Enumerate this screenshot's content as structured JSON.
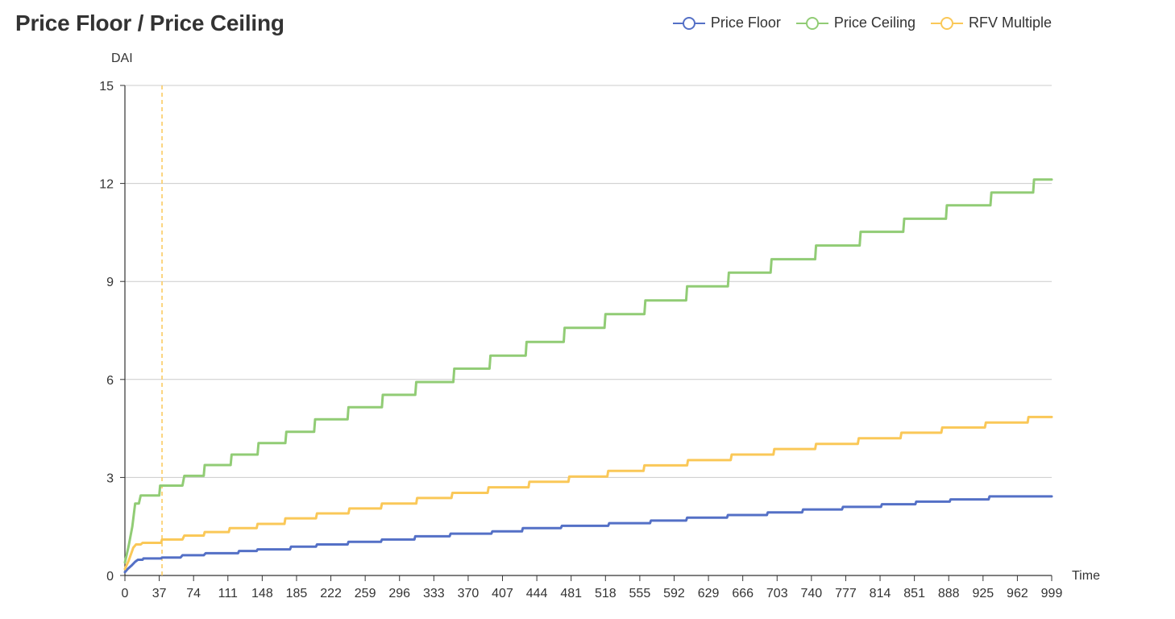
{
  "chart_data": {
    "type": "line",
    "title": "Price Floor / Price Ceiling",
    "xlabel": "Time",
    "ylabel": "DAI",
    "ylim": [
      0,
      15
    ],
    "yticks": [
      "0",
      "3",
      "6",
      "9",
      "12",
      "15"
    ],
    "xlim": [
      0,
      999
    ],
    "xticks": [
      "0",
      "37",
      "74",
      "111",
      "148",
      "185",
      "222",
      "259",
      "296",
      "333",
      "370",
      "407",
      "444",
      "481",
      "518",
      "555",
      "592",
      "629",
      "666",
      "703",
      "740",
      "777",
      "814",
      "851",
      "888",
      "925",
      "962",
      "999"
    ],
    "grid": "horizontal",
    "legend_position": "top-right",
    "marker_x": 40,
    "marker_color": "#fac858",
    "series": [
      {
        "name": "Price Floor",
        "color": "#5470c6",
        "points": [
          [
            0,
            0.1
          ],
          [
            3,
            0.2
          ],
          [
            7,
            0.3
          ],
          [
            11,
            0.42
          ],
          [
            14,
            0.48
          ],
          [
            19,
            0.48
          ],
          [
            20,
            0.52
          ],
          [
            39,
            0.52
          ],
          [
            40,
            0.55
          ],
          [
            60,
            0.55
          ],
          [
            62,
            0.62
          ],
          [
            85,
            0.62
          ],
          [
            87,
            0.68
          ],
          [
            122,
            0.68
          ],
          [
            123,
            0.75
          ],
          [
            142,
            0.75
          ],
          [
            143,
            0.8
          ],
          [
            178,
            0.8
          ],
          [
            179,
            0.88
          ],
          [
            206,
            0.88
          ],
          [
            207,
            0.95
          ],
          [
            240,
            0.95
          ],
          [
            241,
            1.03
          ],
          [
            276,
            1.03
          ],
          [
            277,
            1.1
          ],
          [
            312,
            1.1
          ],
          [
            313,
            1.2
          ],
          [
            350,
            1.2
          ],
          [
            351,
            1.28
          ],
          [
            395,
            1.28
          ],
          [
            396,
            1.35
          ],
          [
            428,
            1.35
          ],
          [
            429,
            1.45
          ],
          [
            470,
            1.45
          ],
          [
            471,
            1.52
          ],
          [
            521,
            1.52
          ],
          [
            522,
            1.6
          ],
          [
            566,
            1.6
          ],
          [
            567,
            1.68
          ],
          [
            605,
            1.68
          ],
          [
            606,
            1.77
          ],
          [
            649,
            1.77
          ],
          [
            650,
            1.85
          ],
          [
            692,
            1.85
          ],
          [
            693,
            1.93
          ],
          [
            730,
            1.93
          ],
          [
            731,
            2.02
          ],
          [
            773,
            2.02
          ],
          [
            774,
            2.1
          ],
          [
            815,
            2.1
          ],
          [
            816,
            2.18
          ],
          [
            852,
            2.18
          ],
          [
            853,
            2.26
          ],
          [
            889,
            2.26
          ],
          [
            890,
            2.33
          ],
          [
            931,
            2.33
          ],
          [
            932,
            2.42
          ],
          [
            999,
            2.42
          ]
        ]
      },
      {
        "name": "Price Ceiling",
        "color": "#91cc75",
        "points": [
          [
            0,
            0.4
          ],
          [
            4,
            0.9
          ],
          [
            8,
            1.5
          ],
          [
            11,
            2.2
          ],
          [
            15,
            2.2
          ],
          [
            17,
            2.45
          ],
          [
            37,
            2.45
          ],
          [
            38,
            2.75
          ],
          [
            62,
            2.75
          ],
          [
            64,
            3.05
          ],
          [
            85,
            3.05
          ],
          [
            86,
            3.38
          ],
          [
            114,
            3.38
          ],
          [
            115,
            3.7
          ],
          [
            143,
            3.7
          ],
          [
            144,
            4.05
          ],
          [
            173,
            4.05
          ],
          [
            174,
            4.4
          ],
          [
            204,
            4.4
          ],
          [
            205,
            4.78
          ],
          [
            240,
            4.78
          ],
          [
            241,
            5.15
          ],
          [
            277,
            5.15
          ],
          [
            278,
            5.53
          ],
          [
            313,
            5.53
          ],
          [
            314,
            5.92
          ],
          [
            354,
            5.92
          ],
          [
            355,
            6.33
          ],
          [
            393,
            6.33
          ],
          [
            394,
            6.73
          ],
          [
            432,
            6.73
          ],
          [
            433,
            7.15
          ],
          [
            473,
            7.15
          ],
          [
            474,
            7.58
          ],
          [
            517,
            7.58
          ],
          [
            518,
            8.0
          ],
          [
            560,
            8.0
          ],
          [
            561,
            8.42
          ],
          [
            605,
            8.42
          ],
          [
            606,
            8.85
          ],
          [
            650,
            8.85
          ],
          [
            651,
            9.27
          ],
          [
            696,
            9.27
          ],
          [
            697,
            9.68
          ],
          [
            744,
            9.68
          ],
          [
            745,
            10.1
          ],
          [
            792,
            10.1
          ],
          [
            793,
            10.52
          ],
          [
            839,
            10.52
          ],
          [
            840,
            10.92
          ],
          [
            885,
            10.92
          ],
          [
            886,
            11.33
          ],
          [
            933,
            11.33
          ],
          [
            934,
            11.72
          ],
          [
            979,
            11.72
          ],
          [
            980,
            12.12
          ],
          [
            999,
            12.12
          ]
        ]
      },
      {
        "name": "RFV Multiple",
        "color": "#fac858",
        "points": [
          [
            0,
            0.2
          ],
          [
            4,
            0.45
          ],
          [
            9,
            0.85
          ],
          [
            12,
            0.95
          ],
          [
            17,
            0.95
          ],
          [
            19,
            1.0
          ],
          [
            39,
            1.0
          ],
          [
            40,
            1.1
          ],
          [
            62,
            1.1
          ],
          [
            64,
            1.22
          ],
          [
            85,
            1.22
          ],
          [
            86,
            1.33
          ],
          [
            112,
            1.33
          ],
          [
            113,
            1.45
          ],
          [
            142,
            1.45
          ],
          [
            143,
            1.58
          ],
          [
            172,
            1.58
          ],
          [
            173,
            1.75
          ],
          [
            206,
            1.75
          ],
          [
            207,
            1.9
          ],
          [
            241,
            1.9
          ],
          [
            242,
            2.05
          ],
          [
            276,
            2.05
          ],
          [
            277,
            2.2
          ],
          [
            314,
            2.2
          ],
          [
            315,
            2.37
          ],
          [
            352,
            2.37
          ],
          [
            353,
            2.53
          ],
          [
            391,
            2.53
          ],
          [
            392,
            2.7
          ],
          [
            435,
            2.7
          ],
          [
            436,
            2.87
          ],
          [
            478,
            2.87
          ],
          [
            479,
            3.03
          ],
          [
            520,
            3.03
          ],
          [
            521,
            3.2
          ],
          [
            559,
            3.2
          ],
          [
            560,
            3.37
          ],
          [
            606,
            3.37
          ],
          [
            607,
            3.53
          ],
          [
            653,
            3.53
          ],
          [
            654,
            3.7
          ],
          [
            699,
            3.7
          ],
          [
            700,
            3.87
          ],
          [
            744,
            3.87
          ],
          [
            745,
            4.03
          ],
          [
            790,
            4.03
          ],
          [
            791,
            4.2
          ],
          [
            836,
            4.2
          ],
          [
            837,
            4.37
          ],
          [
            880,
            4.37
          ],
          [
            881,
            4.53
          ],
          [
            927,
            4.53
          ],
          [
            928,
            4.68
          ],
          [
            973,
            4.68
          ],
          [
            974,
            4.85
          ],
          [
            999,
            4.85
          ]
        ]
      }
    ]
  }
}
